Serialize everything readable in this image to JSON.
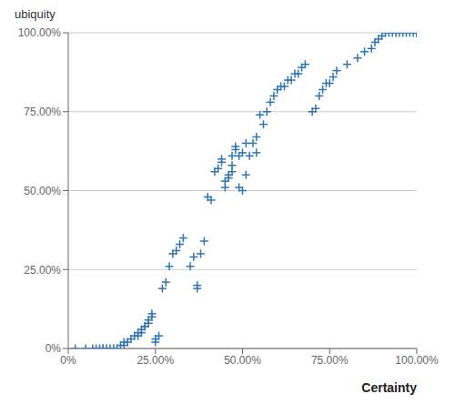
{
  "chart_data": {
    "type": "scatter",
    "xlabel": "Certainty",
    "ylabel": "ubiquity",
    "marker": "plus",
    "color": "#2e75b6",
    "grid": "y",
    "xlim": [
      0,
      1
    ],
    "ylim": [
      0,
      1
    ],
    "xticks": [
      {
        "value": 0,
        "label": "0%"
      },
      {
        "value": 0.25,
        "label": "25.00%"
      },
      {
        "value": 0.5,
        "label": "50.00%"
      },
      {
        "value": 0.75,
        "label": "75.00%"
      },
      {
        "value": 1.0,
        "label": "100.00%"
      }
    ],
    "yticks": [
      {
        "value": 0,
        "label": "0%"
      },
      {
        "value": 0.25,
        "label": "25.00%"
      },
      {
        "value": 0.5,
        "label": "50.00%"
      },
      {
        "value": 0.75,
        "label": "75.00%"
      },
      {
        "value": 1.0,
        "label": "100.00%"
      }
    ],
    "x": [
      0.02,
      0.05,
      0.07,
      0.08,
      0.09,
      0.1,
      0.1,
      0.11,
      0.12,
      0.13,
      0.14,
      0.15,
      0.16,
      0.16,
      0.17,
      0.18,
      0.19,
      0.2,
      0.2,
      0.21,
      0.21,
      0.22,
      0.22,
      0.23,
      0.23,
      0.24,
      0.24,
      0.25,
      0.25,
      0.26,
      0.27,
      0.28,
      0.29,
      0.3,
      0.31,
      0.32,
      0.33,
      0.35,
      0.36,
      0.37,
      0.37,
      0.38,
      0.39,
      0.4,
      0.41,
      0.42,
      0.43,
      0.44,
      0.44,
      0.45,
      0.45,
      0.46,
      0.46,
      0.47,
      0.47,
      0.47,
      0.48,
      0.48,
      0.49,
      0.49,
      0.5,
      0.5,
      0.51,
      0.51,
      0.52,
      0.53,
      0.54,
      0.54,
      0.55,
      0.56,
      0.57,
      0.58,
      0.59,
      0.6,
      0.61,
      0.62,
      0.63,
      0.64,
      0.65,
      0.66,
      0.67,
      0.68,
      0.7,
      0.71,
      0.72,
      0.73,
      0.74,
      0.75,
      0.76,
      0.77,
      0.8,
      0.83,
      0.85,
      0.87,
      0.88,
      0.89,
      0.9,
      0.91,
      0.92,
      0.93,
      0.94,
      0.95,
      0.96,
      0.97,
      0.98,
      0.99,
      1.0,
      1.0,
      1.0
    ],
    "values": [
      0.0,
      0.0,
      0.0,
      0.0,
      0.0,
      0.0,
      0.0,
      0.0,
      0.0,
      0.0,
      0.0,
      0.01,
      0.01,
      0.02,
      0.02,
      0.03,
      0.04,
      0.04,
      0.05,
      0.05,
      0.06,
      0.07,
      0.07,
      0.08,
      0.09,
      0.1,
      0.11,
      0.02,
      0.03,
      0.04,
      0.19,
      0.21,
      0.26,
      0.3,
      0.31,
      0.33,
      0.35,
      0.26,
      0.29,
      0.19,
      0.2,
      0.3,
      0.34,
      0.48,
      0.47,
      0.56,
      0.57,
      0.59,
      0.6,
      0.51,
      0.53,
      0.54,
      0.55,
      0.56,
      0.58,
      0.61,
      0.63,
      0.64,
      0.51,
      0.61,
      0.5,
      0.62,
      0.55,
      0.65,
      0.61,
      0.65,
      0.67,
      0.62,
      0.74,
      0.71,
      0.75,
      0.78,
      0.8,
      0.82,
      0.83,
      0.83,
      0.85,
      0.85,
      0.87,
      0.87,
      0.89,
      0.9,
      0.75,
      0.76,
      0.8,
      0.82,
      0.84,
      0.84,
      0.86,
      0.88,
      0.9,
      0.92,
      0.94,
      0.95,
      0.97,
      0.98,
      0.99,
      1.0,
      1.0,
      1.0,
      1.0,
      1.0,
      1.0,
      1.0,
      1.0,
      1.0,
      1.0,
      1.0,
      1.0
    ]
  }
}
